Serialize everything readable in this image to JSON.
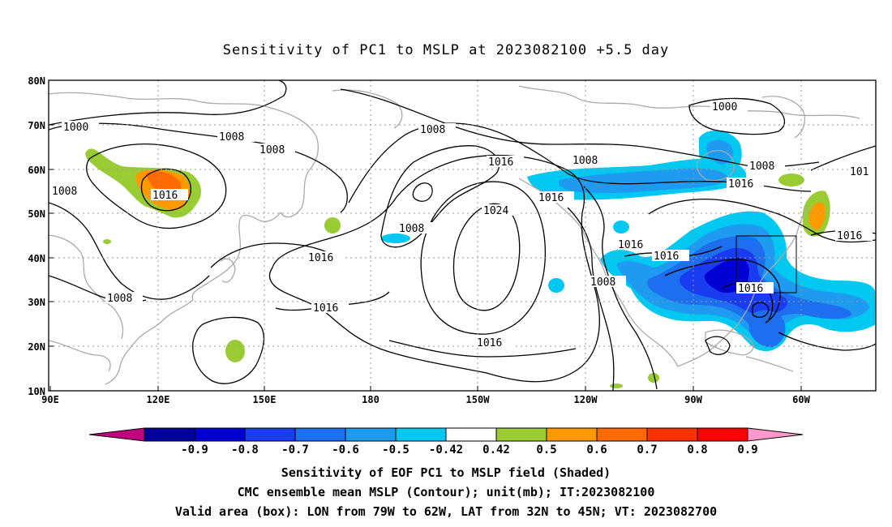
{
  "title": "Sensitivity of PC1 to MSLP at 2023082100 +5.5 day",
  "lon_ticks": [
    "90E",
    "120E",
    "150E",
    "180",
    "150W",
    "120W",
    "90W",
    "60W"
  ],
  "lat_ticks": [
    "80N",
    "70N",
    "60N",
    "50N",
    "40N",
    "30N",
    "20N",
    "10N"
  ],
  "contour_labels": {
    "c1000a": "1000",
    "c1000b": "1000",
    "c1008a": "1008",
    "c1008b": "1008",
    "c1008c": "1008",
    "c1008d": "1008",
    "c1008e": "1008",
    "c1008f": "1008",
    "c1008g": "1008",
    "c1008h": "1008",
    "c1008i": "1008",
    "c1016a": "1016",
    "c1016b": "1016",
    "c1016c": "1016",
    "c1016d": "1016",
    "c1016e": "1016",
    "c1016f": "1016",
    "c1016g": "1016",
    "c1016h": "1016",
    "c1016i": "1016",
    "c1016j": "1016",
    "c1016k": "1016",
    "c1024": "1024",
    "c101": "101"
  },
  "colorbar": {
    "labels": [
      "-0.9",
      "-0.8",
      "-0.7",
      "-0.6",
      "-0.5",
      "-0.42",
      "0.42",
      "0.5",
      "0.6",
      "0.7",
      "0.8",
      "0.9"
    ],
    "colors": [
      "#c0007f",
      "#00009a",
      "#0000d2",
      "#1a3cf0",
      "#1e6ef0",
      "#1e9bf0",
      "#00c8f0",
      "#ffffff",
      "#99cc33",
      "#ff9900",
      "#ff6a00",
      "#ff3300",
      "#ff0000",
      "#ff99cc"
    ]
  },
  "footer": {
    "line1": "Sensitivity of EOF PC1 to MSLP field (Shaded)",
    "line2": "CMC ensemble mean MSLP (Contour); unit(mb); IT:2023082100",
    "line3": "Valid area (box): LON from 79W to 62W, LAT from 32N to 45N; VT: 2023082700"
  }
}
